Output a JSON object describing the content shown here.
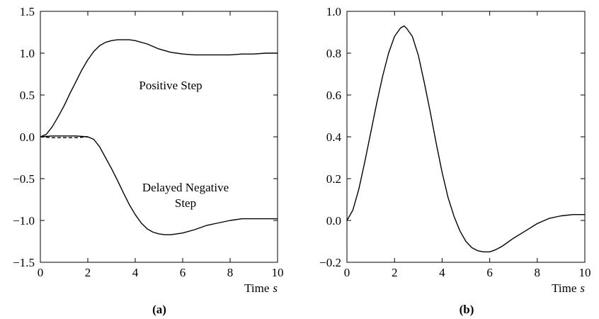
{
  "chart_data": [
    {
      "type": "line",
      "panel_label": "(a)",
      "xlabel": "Time",
      "xlabel_unit": "s",
      "xlim": [
        0,
        10
      ],
      "ylim": [
        -1.5,
        1.5
      ],
      "xticks": [
        "0",
        "2",
        "4",
        "6",
        "8",
        "10"
      ],
      "yticks": [
        "1.5",
        "1.0",
        "0.5",
        "0.0",
        "−0.5",
        "−1.0",
        "−1.5"
      ],
      "grid": false,
      "annotations": [
        {
          "lines": [
            "Positive Step"
          ]
        },
        {
          "lines": [
            "Delayed Negative",
            "Step"
          ]
        }
      ],
      "series": [
        {
          "style": "solid",
          "x": [
            0,
            0.25,
            0.5,
            0.75,
            1.0,
            1.25,
            1.5,
            1.75,
            2.0,
            2.25,
            2.5,
            2.75,
            3.0,
            3.25,
            3.5,
            3.75,
            4.0,
            4.5,
            5.0,
            5.5,
            6.0,
            6.5,
            7.0,
            7.5,
            8.0,
            8.5,
            9.0,
            9.5,
            10.0
          ],
          "values": [
            0.0,
            0.03,
            0.12,
            0.24,
            0.37,
            0.52,
            0.66,
            0.8,
            0.92,
            1.02,
            1.09,
            1.13,
            1.15,
            1.16,
            1.16,
            1.16,
            1.15,
            1.11,
            1.05,
            1.01,
            0.99,
            0.98,
            0.98,
            0.98,
            0.98,
            0.99,
            0.99,
            1.0,
            1.0
          ]
        },
        {
          "style": "solid",
          "x": [
            0,
            0.5,
            1.0,
            1.5,
            2.0,
            2.25,
            2.5,
            2.75,
            3.0,
            3.25,
            3.5,
            3.75,
            4.0,
            4.25,
            4.5,
            4.75,
            5.0,
            5.25,
            5.5,
            5.75,
            6.0,
            6.5,
            7.0,
            7.5,
            8.0,
            8.5,
            8.75,
            9.0,
            9.5,
            10.0
          ],
          "values": [
            0.0,
            0.01,
            0.01,
            0.01,
            0.0,
            -0.03,
            -0.12,
            -0.25,
            -0.38,
            -0.52,
            -0.67,
            -0.81,
            -0.93,
            -1.03,
            -1.1,
            -1.14,
            -1.16,
            -1.17,
            -1.17,
            -1.16,
            -1.15,
            -1.11,
            -1.06,
            -1.03,
            -1.0,
            -0.98,
            -0.98,
            -0.98,
            -0.98,
            -0.98
          ]
        },
        {
          "style": "dashed",
          "x": [
            0,
            0.5,
            1.0,
            1.5,
            2.0
          ],
          "values": [
            0.0,
            -0.01,
            -0.01,
            -0.01,
            0.0
          ]
        }
      ]
    },
    {
      "type": "line",
      "panel_label": "(b)",
      "xlabel": "Time",
      "xlabel_unit": "s",
      "xlim": [
        0,
        10
      ],
      "ylim": [
        -0.2,
        1.0
      ],
      "xticks": [
        "0",
        "2",
        "4",
        "6",
        "8",
        "10"
      ],
      "yticks": [
        "1.0",
        "0.8",
        "0.6",
        "0.4",
        "0.2",
        "0.0",
        "−0.2"
      ],
      "grid": false,
      "annotations": [],
      "series": [
        {
          "style": "solid",
          "x": [
            0,
            0.25,
            0.5,
            0.75,
            1.0,
            1.25,
            1.5,
            1.75,
            2.0,
            2.25,
            2.4,
            2.5,
            2.75,
            3.0,
            3.25,
            3.5,
            3.75,
            4.0,
            4.25,
            4.5,
            4.75,
            5.0,
            5.25,
            5.5,
            5.75,
            6.0,
            6.25,
            6.5,
            6.75,
            7.0,
            7.5,
            8.0,
            8.5,
            9.0,
            9.5,
            10.0
          ],
          "values": [
            0.0,
            0.05,
            0.15,
            0.28,
            0.42,
            0.56,
            0.69,
            0.8,
            0.88,
            0.92,
            0.93,
            0.92,
            0.88,
            0.79,
            0.66,
            0.52,
            0.37,
            0.23,
            0.11,
            0.02,
            -0.05,
            -0.1,
            -0.13,
            -0.145,
            -0.15,
            -0.15,
            -0.14,
            -0.125,
            -0.105,
            -0.085,
            -0.05,
            -0.015,
            0.01,
            0.022,
            0.028,
            0.028
          ]
        }
      ]
    }
  ]
}
